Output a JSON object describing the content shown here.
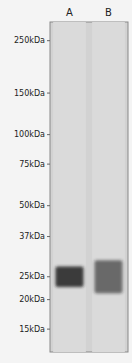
{
  "chart_data": {
    "type": "gel",
    "categories": [
      "A",
      "B"
    ],
    "values": [
      25,
      25
    ],
    "intensities": [
      0.85,
      0.6
    ],
    "widths": [
      2.5,
      4.0
    ],
    "log": "y",
    "ylim": [
      12,
      300
    ],
    "yticks": [
      {
        "value": 250,
        "label": "250kDa"
      },
      {
        "value": 150,
        "label": "150kDa"
      },
      {
        "value": 100,
        "label": "100kDa"
      },
      {
        "value": 75,
        "label": "75kDa"
      },
      {
        "value": 50,
        "label": "50kDa"
      },
      {
        "value": 37,
        "label": "37kDa"
      },
      {
        "value": 25,
        "label": "25kDa"
      },
      {
        "value": 20,
        "label": "20kDa"
      },
      {
        "value": 15,
        "label": "15kDa"
      }
    ],
    "grid": false,
    "tick_labels": "y"
  }
}
